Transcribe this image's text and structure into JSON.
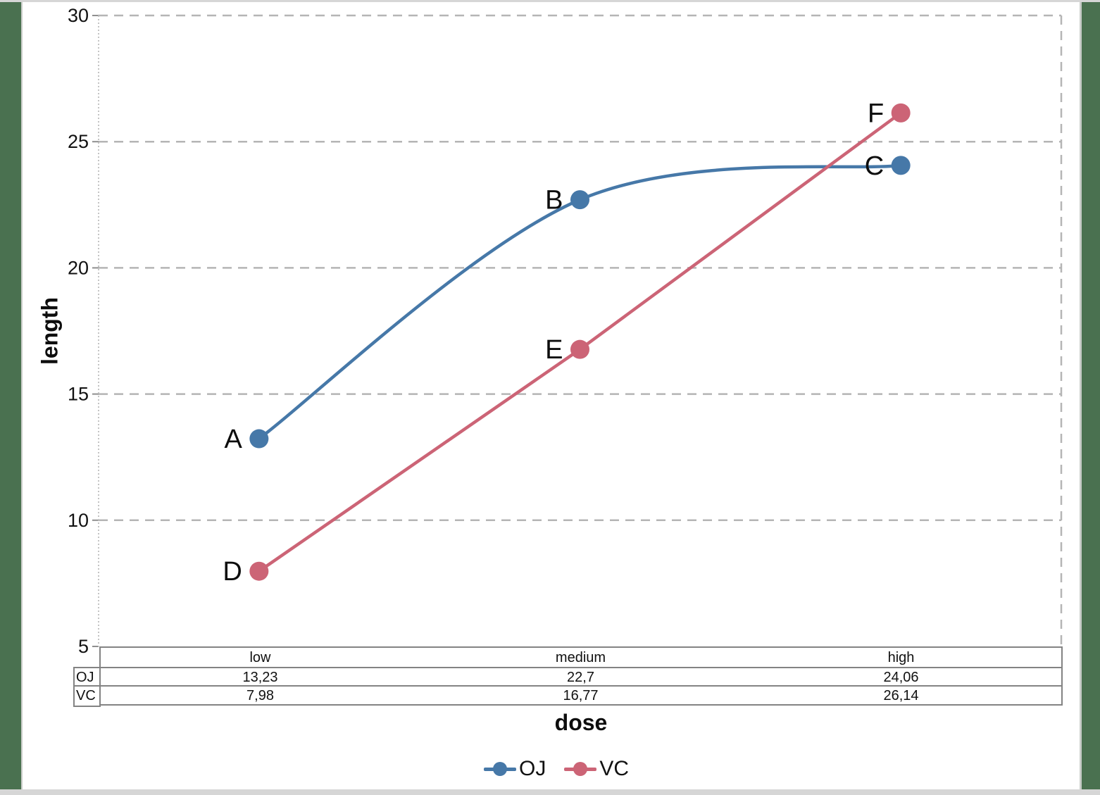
{
  "chart_data": {
    "type": "line",
    "categories": [
      "low",
      "medium",
      "high"
    ],
    "series": [
      {
        "name": "OJ",
        "values": [
          13.23,
          22.7,
          24.06
        ],
        "color": "#4678a8",
        "point_labels": [
          "A",
          "B",
          "C"
        ],
        "smooth": true
      },
      {
        "name": "VC",
        "values": [
          7.98,
          16.77,
          26.14
        ],
        "color": "#cc6476",
        "point_labels": [
          "D",
          "E",
          "F"
        ],
        "smooth": false
      }
    ],
    "title": "",
    "xlabel": "dose",
    "ylabel": "length",
    "ylim": [
      5,
      30
    ],
    "ytick_step": 5,
    "grid": "horizontal-dashed",
    "legend_position": "bottom"
  },
  "axis": {
    "yticks": [
      "30",
      "25",
      "20",
      "15",
      "10",
      "5"
    ]
  },
  "table": {
    "header": [
      "low",
      "medium",
      "high"
    ],
    "rows": [
      {
        "label": "OJ",
        "cells": [
          "13,23",
          "22,7",
          "24,06"
        ]
      },
      {
        "label": "VC",
        "cells": [
          "7,98",
          "16,77",
          "26,14"
        ]
      }
    ]
  },
  "legend": {
    "items": [
      {
        "label": "OJ",
        "color": "#4678a8"
      },
      {
        "label": "VC",
        "color": "#cc6476"
      }
    ]
  },
  "colors": {
    "series_oj": "#4678a8",
    "series_vc": "#cc6476",
    "desktop_green": "#4a7150",
    "gridline": "#b5b5b5",
    "table_border": "#838383"
  }
}
